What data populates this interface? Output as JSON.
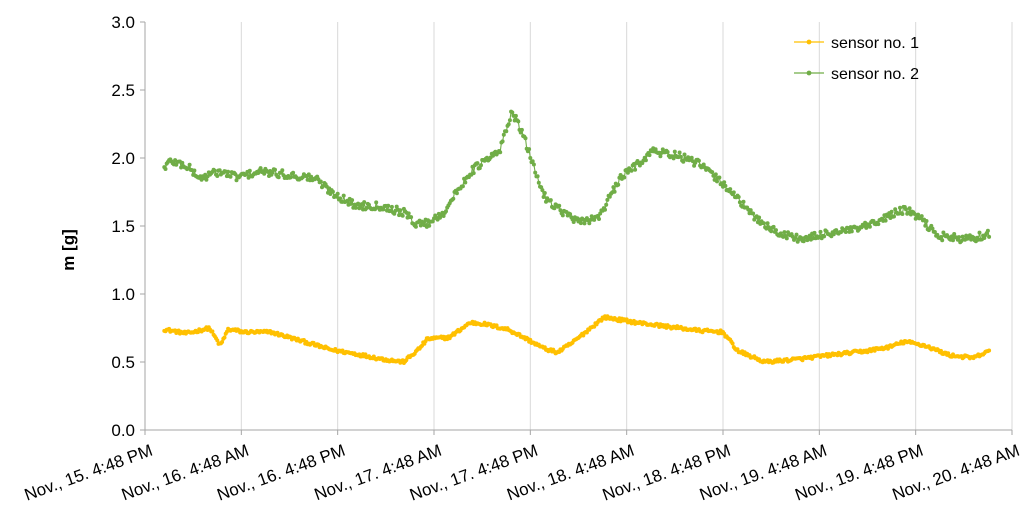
{
  "chart_data": {
    "type": "line",
    "title": "",
    "xlabel": "",
    "ylabel": "m [g]",
    "ylim": [
      0,
      3
    ],
    "yticks": [
      "0.0",
      "0.5",
      "1.0",
      "1.5",
      "2.0",
      "2.5",
      "3.0"
    ],
    "xticks": [
      "Nov., 15. 4:48 PM",
      "Nov., 16. 4:48 AM",
      "Nov., 16. 4:48 PM",
      "Nov., 17. 4:48 AM",
      "Nov., 17. 4:48 PM",
      "Nov., 18. 4:48 AM",
      "Nov., 18. 4:48 PM",
      "Nov., 19. 4:48 AM",
      "Nov., 19. 4:48 PM",
      "Nov., 20. 4:48 AM"
    ],
    "x_note": "x values are timestamps from Nov., 15. 4:48 PM to Nov., 20. 4:48 AM",
    "grid": "vertical",
    "legend": "top-right",
    "series": [
      {
        "name": "sensor no. 1",
        "color": "#FFC000",
        "x": [
          "Nov., 15. 7:12 PM",
          "Nov., 15. 10:00 PM",
          "Nov., 16. 12:50 AM",
          "Nov., 16. 2:10 AM",
          "Nov., 16. 3:10 AM",
          "Nov., 16. 4:20 AM",
          "Nov., 16. 5:00 AM",
          "Nov., 16. 8:30 AM",
          "Nov., 16. 12:00 PM",
          "Nov., 16. 4:00 PM",
          "Nov., 16. 7:00 PM",
          "Nov., 16. 10:30 PM",
          "Nov., 17. 1:00 AM",
          "Nov., 17. 2:40 AM",
          "Nov., 17. 4:00 AM",
          "Nov., 17. 6:40 AM",
          "Nov., 17. 9:20 AM",
          "Nov., 17. 11:00 AM",
          "Nov., 17. 2:00 PM",
          "Nov., 17. 4:00 PM",
          "Nov., 17. 6:30 PM",
          "Nov., 17. 8:10 PM",
          "Nov., 17. 10:00 PM",
          "Nov., 18. 2:00 AM",
          "Nov., 18. 6:00 AM",
          "Nov., 18. 10:00 AM",
          "Nov., 18. 2:00 PM",
          "Nov., 18. 4:48 PM",
          "Nov., 18. 6:40 PM",
          "Nov., 18. 10:00 PM",
          "Nov., 19. 2:00 AM",
          "Nov., 19. 6:00 AM",
          "Nov., 19. 10:30 AM",
          "Nov., 19. 1:30 PM",
          "Nov., 19. 3:30 PM",
          "Nov., 19. 6:00 PM",
          "Nov., 19. 9:00 PM",
          "Nov., 20. 12:00 AM",
          "Nov., 20. 2:00 AM"
        ],
        "y": [
          0.74,
          0.71,
          0.75,
          0.62,
          0.74,
          0.73,
          0.72,
          0.72,
          0.66,
          0.59,
          0.56,
          0.52,
          0.5,
          0.58,
          0.67,
          0.68,
          0.79,
          0.78,
          0.74,
          0.68,
          0.6,
          0.57,
          0.64,
          0.83,
          0.79,
          0.76,
          0.73,
          0.72,
          0.58,
          0.5,
          0.52,
          0.55,
          0.58,
          0.61,
          0.65,
          0.62,
          0.55,
          0.53,
          0.58
        ]
      },
      {
        "name": "sensor no. 2",
        "color": "#70AD47",
        "x": [
          "Nov., 15. 7:12 PM",
          "Nov., 15. 8:00 PM",
          "Nov., 15. 10:00 PM",
          "Nov., 15. 11:40 PM",
          "Nov., 16. 2:00 AM",
          "Nov., 16. 4:20 AM",
          "Nov., 16. 7:10 AM",
          "Nov., 16. 10:00 AM",
          "Nov., 16. 2:00 PM",
          "Nov., 16. 4:00 PM",
          "Nov., 16. 7:00 PM",
          "Nov., 16. 10:00 PM",
          "Nov., 17. 1:00 AM",
          "Nov., 17. 2:30 AM",
          "Nov., 17. 4:00 AM",
          "Nov., 17. 6:00 AM",
          "Nov., 17. 8:00 AM",
          "Nov., 17. 9:20 AM",
          "Nov., 17. 10:30 AM",
          "Nov., 17. 1:00 PM",
          "Nov., 17. 2:30 PM",
          "Nov., 17. 4:00 PM",
          "Nov., 17. 6:30 PM",
          "Nov., 17. 8:30 PM",
          "Nov., 17. 11:00 PM",
          "Nov., 18. 1:30 AM",
          "Nov., 18. 4:00 AM",
          "Nov., 18. 8:00 AM",
          "Nov., 18. 11:00 AM",
          "Nov., 18. 2:00 PM",
          "Nov., 18. 4:00 PM",
          "Nov., 18. 6:00 PM",
          "Nov., 18. 8:00 PM",
          "Nov., 18. 11:30 PM",
          "Nov., 19. 3:00 AM",
          "Nov., 19. 6:00 AM",
          "Nov., 19. 9:00 AM",
          "Nov., 19. 12:00 PM",
          "Nov., 19. 1:30 PM",
          "Nov., 19. 3:30 PM",
          "Nov., 19. 5:30 PM",
          "Nov., 19. 7:30 PM",
          "Nov., 19. 11:00 PM",
          "Nov., 20. 2:00 AM"
        ],
        "y": [
          1.93,
          1.98,
          1.94,
          1.85,
          1.9,
          1.86,
          1.9,
          1.88,
          1.85,
          1.75,
          1.65,
          1.65,
          1.6,
          1.52,
          1.52,
          1.6,
          1.78,
          1.9,
          1.95,
          2.05,
          2.35,
          2.15,
          1.72,
          1.62,
          1.52,
          1.58,
          1.85,
          2.05,
          2.02,
          1.95,
          1.85,
          1.75,
          1.6,
          1.45,
          1.4,
          1.45,
          1.47,
          1.52,
          1.58,
          1.62,
          1.55,
          1.43,
          1.4,
          1.44
        ]
      }
    ]
  }
}
